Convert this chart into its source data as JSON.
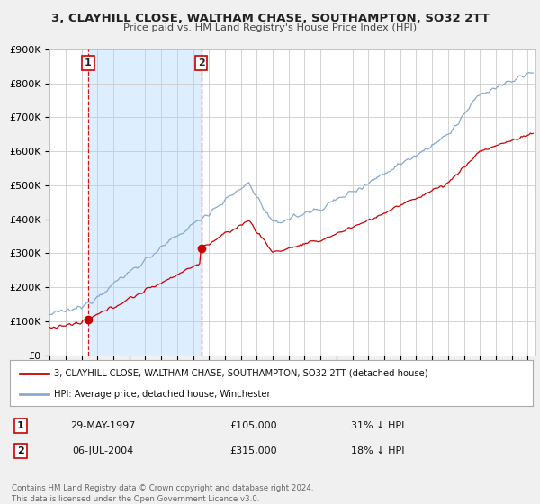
{
  "title_line1": "3, CLAYHILL CLOSE, WALTHAM CHASE, SOUTHAMPTON, SO32 2TT",
  "title_line2": "Price paid vs. HM Land Registry's House Price Index (HPI)",
  "ylim": [
    0,
    900000
  ],
  "xlim_start": 1995.0,
  "xlim_end": 2025.5,
  "yticks": [
    0,
    100000,
    200000,
    300000,
    400000,
    500000,
    600000,
    700000,
    800000,
    900000
  ],
  "ytick_labels": [
    "£0",
    "£100K",
    "£200K",
    "£300K",
    "£400K",
    "£500K",
    "£600K",
    "£700K",
    "£800K",
    "£900K"
  ],
  "xticks": [
    1995,
    1996,
    1997,
    1998,
    1999,
    2000,
    2001,
    2002,
    2003,
    2004,
    2005,
    2006,
    2007,
    2008,
    2009,
    2010,
    2011,
    2012,
    2013,
    2014,
    2015,
    2016,
    2017,
    2018,
    2019,
    2020,
    2021,
    2022,
    2023,
    2024,
    2025
  ],
  "sale1_x": 1997.41,
  "sale1_y": 105000,
  "sale1_label": "1",
  "sale1_date": "29-MAY-1997",
  "sale1_price": "£105,000",
  "sale1_hpi": "31% ↓ HPI",
  "sale2_x": 2004.51,
  "sale2_y": 315000,
  "sale2_label": "2",
  "sale2_date": "06-JUL-2004",
  "sale2_price": "£315,000",
  "sale2_hpi": "18% ↓ HPI",
  "property_color": "#cc0000",
  "hpi_color": "#88aacc",
  "shaded_color": "#ddeeff",
  "background_color": "#f0f0f0",
  "plot_bg_color": "#ffffff",
  "grid_color": "#cccccc",
  "legend_label_property": "3, CLAYHILL CLOSE, WALTHAM CHASE, SOUTHAMPTON, SO32 2TT (detached house)",
  "legend_label_hpi": "HPI: Average price, detached house, Winchester",
  "footnote": "Contains HM Land Registry data © Crown copyright and database right 2024.\nThis data is licensed under the Open Government Licence v3.0."
}
